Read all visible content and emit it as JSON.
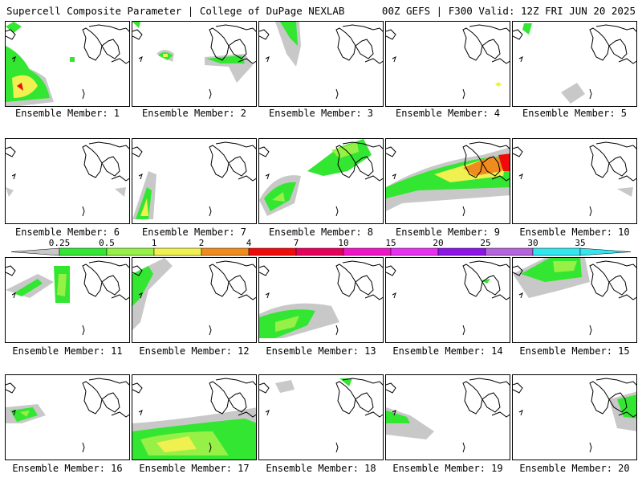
{
  "header": {
    "left": "Supercell Composite Parameter | College of DuPage NEXLAB",
    "right": "00Z GEFS | F300 Valid: 12Z FRI JUN 20 2025"
  },
  "colorbar": {
    "ticks": [
      "0.25",
      "0.5",
      "1",
      "2",
      "4",
      "7",
      "10",
      "15",
      "20",
      "25",
      "30",
      "35"
    ],
    "colors": [
      "#c8c8c8",
      "#32e632",
      "#96f046",
      "#f0f050",
      "#f08c1e",
      "#f00a0a",
      "#e6005a",
      "#f014c8",
      "#e632f0",
      "#8c14e6",
      "#b464dc",
      "#32e6f0"
    ]
  },
  "panels": [
    {
      "label": "Ensemble Member: 1"
    },
    {
      "label": "Ensemble Member: 2"
    },
    {
      "label": "Ensemble Member: 3"
    },
    {
      "label": "Ensemble Member: 4"
    },
    {
      "label": "Ensemble Member: 5"
    },
    {
      "label": "Ensemble Member: 6"
    },
    {
      "label": "Ensemble Member: 7"
    },
    {
      "label": "Ensemble Member: 8"
    },
    {
      "label": "Ensemble Member: 9"
    },
    {
      "label": "Ensemble Member: 10"
    },
    {
      "label": "Ensemble Member: 11"
    },
    {
      "label": "Ensemble Member: 12"
    },
    {
      "label": "Ensemble Member: 13"
    },
    {
      "label": "Ensemble Member: 14"
    },
    {
      "label": "Ensemble Member: 15"
    },
    {
      "label": "Ensemble Member: 16"
    },
    {
      "label": "Ensemble Member: 17"
    },
    {
      "label": "Ensemble Member: 18"
    },
    {
      "label": "Ensemble Member: 19"
    },
    {
      "label": "Ensemble Member: 20"
    }
  ]
}
